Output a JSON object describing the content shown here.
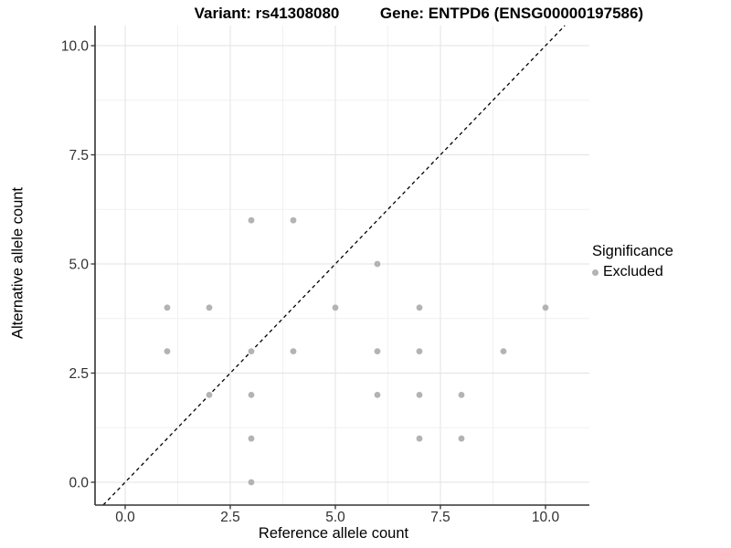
{
  "titles": {
    "variant": "Variant: rs41308080",
    "gene": "Gene: ENTPD6 (ENSG00000197586)"
  },
  "axes": {
    "x": {
      "label": "Reference allele count"
    },
    "y": {
      "label": "Alternative allele count"
    }
  },
  "legend": {
    "title": "Significance",
    "items": [
      {
        "label": "Excluded",
        "color": "#b3b3b3"
      }
    ]
  },
  "colors": {
    "point": "#b3b3b3",
    "axis_line": "#333333",
    "tick_text": "#303030",
    "grid_major": "#e3e3e3",
    "grid_minor": "#f1f1f1",
    "reference_line": "#000000"
  },
  "chart_data": {
    "type": "scatter",
    "title": "Variant: rs41308080   Gene: ENTPD6 (ENSG00000197586)",
    "xlabel": "Reference allele count",
    "ylabel": "Alternative allele count",
    "xlim": [
      -0.72,
      11.05
    ],
    "ylim": [
      -0.52,
      10.48
    ],
    "x_ticks": [
      0,
      2.5,
      5,
      7.5,
      10
    ],
    "x_tick_labels": [
      "0.0",
      "2.5",
      "5.0",
      "7.5",
      "10.0"
    ],
    "y_ticks": [
      0,
      2.5,
      5,
      7.5,
      10
    ],
    "y_tick_labels": [
      "0.0",
      "2.5",
      "5.0",
      "7.5",
      "10.0"
    ],
    "x_minor_ticks": [
      1.25,
      3.75,
      6.25,
      8.75
    ],
    "y_minor_ticks": [
      1.25,
      3.75,
      6.25,
      8.75
    ],
    "grid": true,
    "legend_position": "right",
    "reference_line": {
      "kind": "identity y=x",
      "style": "dashed"
    },
    "series": [
      {
        "name": "Excluded",
        "color": "#b3b3b3",
        "points": [
          [
            3,
            6
          ],
          [
            4,
            6
          ],
          [
            6,
            5
          ],
          [
            1,
            4
          ],
          [
            2,
            4
          ],
          [
            5,
            4
          ],
          [
            7,
            4
          ],
          [
            10,
            4
          ],
          [
            1,
            3
          ],
          [
            3,
            3
          ],
          [
            4,
            3
          ],
          [
            6,
            3
          ],
          [
            7,
            3
          ],
          [
            9,
            3
          ],
          [
            2,
            2
          ],
          [
            3,
            2
          ],
          [
            6,
            2
          ],
          [
            7,
            2
          ],
          [
            8,
            2
          ],
          [
            3,
            1
          ],
          [
            7,
            1
          ],
          [
            8,
            1
          ],
          [
            3,
            0
          ]
        ]
      }
    ]
  }
}
